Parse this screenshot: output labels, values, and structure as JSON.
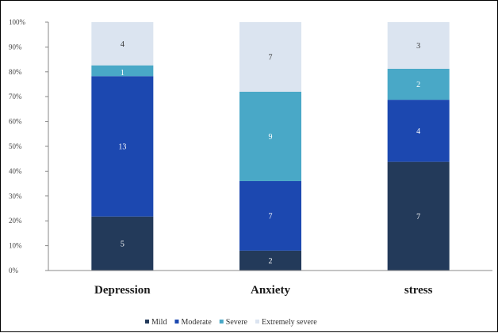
{
  "chart_data": {
    "type": "bar",
    "stacked": true,
    "normalized": true,
    "categories": [
      "Depression",
      "Anxiety",
      "stress"
    ],
    "series": [
      {
        "name": "Mild",
        "values": [
          5,
          2,
          7
        ],
        "color": "#233a5a",
        "label_color": "#ffffff"
      },
      {
        "name": "Moderate",
        "values": [
          13,
          7,
          4
        ],
        "color": "#1c48b0",
        "label_color": "#ffffff"
      },
      {
        "name": "Severe",
        "values": [
          1,
          9,
          2
        ],
        "color": "#49a8c7",
        "label_color": "#ffffff"
      },
      {
        "name": "Extremely severe",
        "values": [
          4,
          7,
          3
        ],
        "color": "#dbe4f0",
        "label_color": "#333333"
      }
    ],
    "yticks": [
      "0%",
      "10%",
      "20%",
      "30%",
      "40%",
      "50%",
      "60%",
      "70%",
      "80%",
      "90%",
      "100%"
    ],
    "ylim": [
      0,
      100
    ],
    "grid": false,
    "legend_position": "bottom"
  }
}
